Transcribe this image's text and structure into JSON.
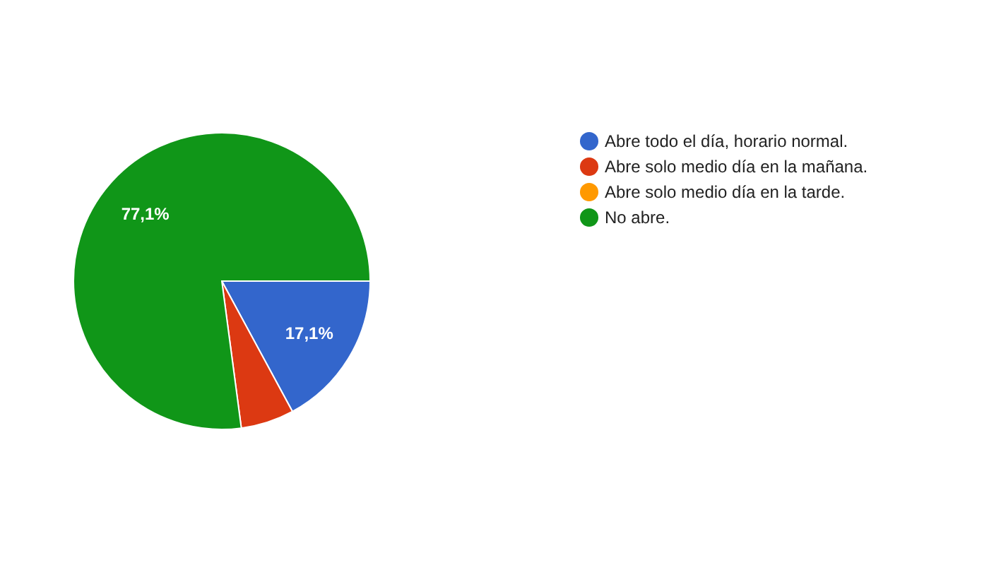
{
  "chart_data": {
    "type": "pie",
    "categories": [
      "Abre todo el día, horario normal.",
      "Abre solo medio día en la mañana.",
      "Abre solo medio día en la tarde.",
      "No abre."
    ],
    "values": [
      17.1,
      5.8,
      0,
      77.1
    ],
    "colors": [
      "#3366cc",
      "#dc3912",
      "#ff9900",
      "#109618"
    ],
    "value_labels": [
      "17,1%",
      null,
      null,
      "77,1%"
    ],
    "legend": "right"
  }
}
